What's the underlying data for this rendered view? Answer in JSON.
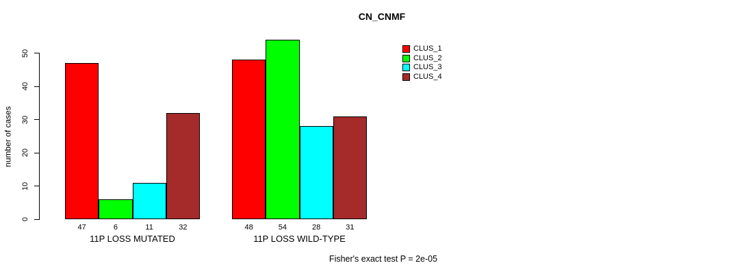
{
  "chart_data": {
    "type": "bar",
    "title": "CN_CNMF",
    "ylabel": "number of cases",
    "xlabel": "",
    "categories": [
      "11P LOSS MUTATED",
      "11P LOSS WILD-TYPE"
    ],
    "series": [
      {
        "name": "CLUS_1",
        "color": "#FF0000",
        "values": [
          47,
          48
        ]
      },
      {
        "name": "CLUS_2",
        "color": "#00FF00",
        "values": [
          6,
          54
        ]
      },
      {
        "name": "CLUS_3",
        "color": "#00FFFF",
        "values": [
          11,
          28
        ]
      },
      {
        "name": "CLUS_4",
        "color": "#A52A2A",
        "values": [
          32,
          31
        ]
      }
    ],
    "yticks": [
      0,
      10,
      20,
      30,
      40,
      50
    ],
    "ylim": [
      0,
      55
    ],
    "grid": false,
    "legend_position": "top-right",
    "bar_value_labels": true,
    "annotation": "Fisher's exact test P = 2e-05"
  }
}
